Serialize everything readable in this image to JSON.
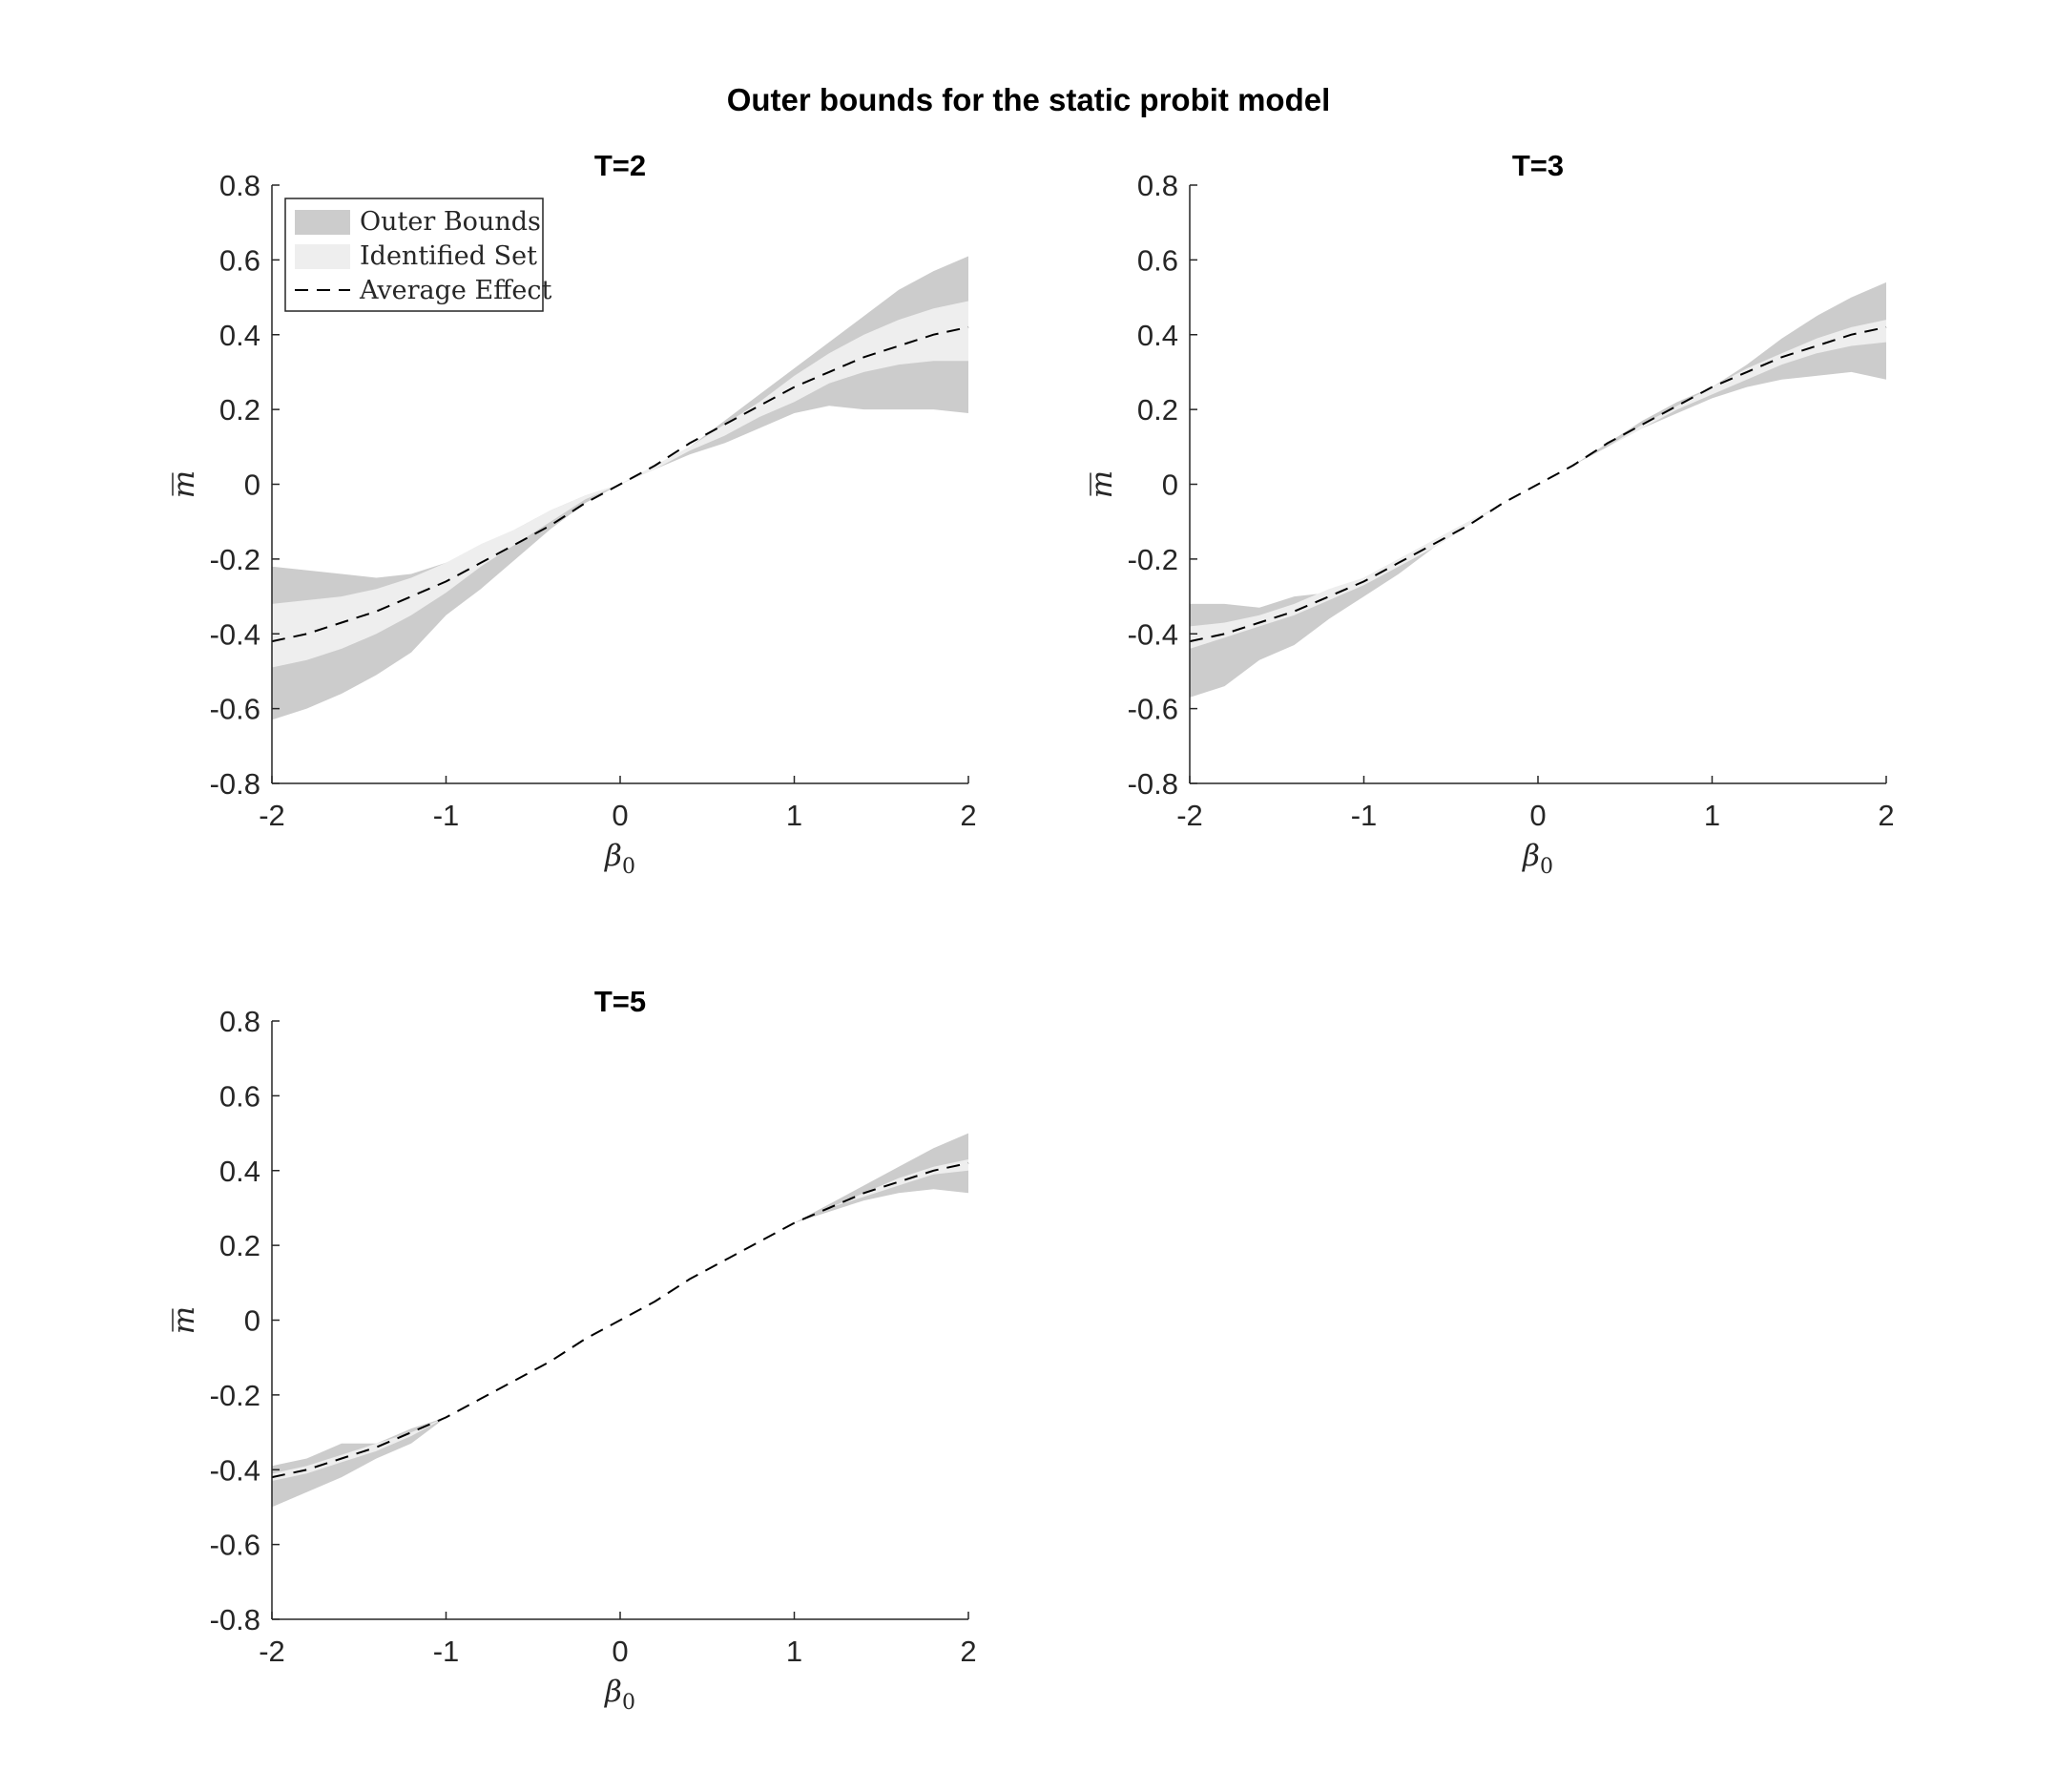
{
  "figure": {
    "title": "Outer bounds for the static probit model",
    "colors": {
      "outer": "#cccccc",
      "identified": "#eeeeee",
      "average": "#000000",
      "axis": "#262626"
    }
  },
  "legend": {
    "placement": "top-left",
    "entries": [
      "Outer Bounds",
      "Identified Set",
      "Average Effect"
    ]
  },
  "chart_data": [
    {
      "type": "area",
      "title": "T=2",
      "xlabel_base": "β",
      "xlabel_sub": "0",
      "ylabel": "m",
      "xlim": [
        -2,
        2
      ],
      "ylim": [
        -0.8,
        0.8
      ],
      "xticks": [
        -2,
        -1,
        0,
        1,
        2
      ],
      "yticks": [
        -0.8,
        -0.6,
        -0.4,
        -0.2,
        0,
        0.2,
        0.4,
        0.6,
        0.8
      ],
      "xtick_labels": [
        "-2",
        "-1",
        "0",
        "1",
        "2"
      ],
      "ytick_labels": [
        "-0.8",
        "-0.6",
        "-0.4",
        "-0.2",
        "0",
        "0.2",
        "0.4",
        "0.6",
        "0.8"
      ],
      "grid": false,
      "has_legend": true,
      "x": [
        -2,
        -1.8,
        -1.6,
        -1.4,
        -1.2,
        -1,
        -0.8,
        -0.6,
        -0.4,
        -0.2,
        0,
        0.2,
        0.4,
        0.6,
        0.8,
        1,
        1.2,
        1.4,
        1.6,
        1.8,
        2
      ],
      "series": [
        {
          "role": "outer_upper",
          "values": [
            -0.22,
            -0.23,
            -0.24,
            -0.25,
            -0.24,
            -0.21,
            -0.17,
            -0.12,
            -0.07,
            -0.03,
            0.0,
            0.05,
            0.1,
            0.17,
            0.24,
            0.31,
            0.38,
            0.45,
            0.52,
            0.57,
            0.61
          ]
        },
        {
          "role": "outer_lower",
          "values": [
            -0.63,
            -0.6,
            -0.56,
            -0.51,
            -0.45,
            -0.35,
            -0.28,
            -0.2,
            -0.12,
            -0.05,
            0.0,
            0.04,
            0.08,
            0.11,
            0.15,
            0.19,
            0.21,
            0.2,
            0.2,
            0.2,
            0.19
          ]
        },
        {
          "role": "identified_upper",
          "values": [
            -0.32,
            -0.31,
            -0.3,
            -0.28,
            -0.25,
            -0.21,
            -0.16,
            -0.12,
            -0.07,
            -0.03,
            0.0,
            0.05,
            0.1,
            0.16,
            0.22,
            0.29,
            0.35,
            0.4,
            0.44,
            0.47,
            0.49
          ]
        },
        {
          "role": "identified_lower",
          "values": [
            -0.49,
            -0.47,
            -0.44,
            -0.4,
            -0.35,
            -0.29,
            -0.22,
            -0.16,
            -0.1,
            -0.04,
            0.0,
            0.04,
            0.09,
            0.13,
            0.18,
            0.22,
            0.27,
            0.3,
            0.32,
            0.33,
            0.33
          ]
        },
        {
          "role": "average",
          "values": [
            -0.42,
            -0.4,
            -0.37,
            -0.34,
            -0.3,
            -0.26,
            -0.21,
            -0.16,
            -0.11,
            -0.05,
            0.0,
            0.05,
            0.11,
            0.16,
            0.21,
            0.26,
            0.3,
            0.34,
            0.37,
            0.4,
            0.42
          ]
        }
      ]
    },
    {
      "type": "area",
      "title": "T=3",
      "xlabel_base": "β",
      "xlabel_sub": "0",
      "ylabel": "m",
      "xlim": [
        -2,
        2
      ],
      "ylim": [
        -0.8,
        0.8
      ],
      "xticks": [
        -2,
        -1,
        0,
        1,
        2
      ],
      "yticks": [
        -0.8,
        -0.6,
        -0.4,
        -0.2,
        0,
        0.2,
        0.4,
        0.6,
        0.8
      ],
      "xtick_labels": [
        "-2",
        "-1",
        "0",
        "1",
        "2"
      ],
      "ytick_labels": [
        "-0.8",
        "-0.6",
        "-0.4",
        "-0.2",
        "0",
        "0.2",
        "0.4",
        "0.6",
        "0.8"
      ],
      "grid": false,
      "has_legend": false,
      "x": [
        -2,
        -1.8,
        -1.6,
        -1.4,
        -1.2,
        -1,
        -0.8,
        -0.6,
        -0.4,
        -0.2,
        0,
        0.2,
        0.4,
        0.6,
        0.8,
        1,
        1.2,
        1.4,
        1.6,
        1.8,
        2
      ],
      "series": [
        {
          "role": "outer_upper",
          "values": [
            -0.32,
            -0.32,
            -0.33,
            -0.3,
            -0.29,
            -0.25,
            -0.2,
            -0.15,
            -0.1,
            -0.05,
            0.0,
            0.05,
            0.11,
            0.17,
            0.22,
            0.26,
            0.32,
            0.39,
            0.45,
            0.5,
            0.54
          ]
        },
        {
          "role": "outer_lower",
          "values": [
            -0.57,
            -0.54,
            -0.47,
            -0.43,
            -0.36,
            -0.3,
            -0.24,
            -0.17,
            -0.11,
            -0.05,
            0.0,
            0.05,
            0.1,
            0.15,
            0.19,
            0.23,
            0.26,
            0.28,
            0.29,
            0.3,
            0.28
          ]
        },
        {
          "role": "identified_upper",
          "values": [
            -0.38,
            -0.37,
            -0.35,
            -0.32,
            -0.28,
            -0.25,
            -0.2,
            -0.15,
            -0.1,
            -0.05,
            0.0,
            0.05,
            0.1,
            0.16,
            0.21,
            0.26,
            0.31,
            0.35,
            0.39,
            0.42,
            0.44
          ]
        },
        {
          "role": "identified_lower",
          "values": [
            -0.44,
            -0.41,
            -0.38,
            -0.35,
            -0.31,
            -0.27,
            -0.22,
            -0.17,
            -0.11,
            -0.05,
            0.0,
            0.05,
            0.1,
            0.15,
            0.2,
            0.24,
            0.28,
            0.32,
            0.35,
            0.37,
            0.38
          ]
        },
        {
          "role": "average",
          "values": [
            -0.42,
            -0.4,
            -0.37,
            -0.34,
            -0.3,
            -0.26,
            -0.21,
            -0.16,
            -0.11,
            -0.05,
            0.0,
            0.05,
            0.11,
            0.16,
            0.21,
            0.26,
            0.3,
            0.34,
            0.37,
            0.4,
            0.42
          ]
        }
      ]
    },
    {
      "type": "area",
      "title": "T=5",
      "xlabel_base": "β",
      "xlabel_sub": "0",
      "ylabel": "m",
      "xlim": [
        -2,
        2
      ],
      "ylim": [
        -0.8,
        0.8
      ],
      "xticks": [
        -2,
        -1,
        0,
        1,
        2
      ],
      "yticks": [
        -0.8,
        -0.6,
        -0.4,
        -0.2,
        0,
        0.2,
        0.4,
        0.6,
        0.8
      ],
      "xtick_labels": [
        "-2",
        "-1",
        "0",
        "1",
        "2"
      ],
      "ytick_labels": [
        "-0.8",
        "-0.6",
        "-0.4",
        "-0.2",
        "0",
        "0.2",
        "0.4",
        "0.6",
        "0.8"
      ],
      "grid": false,
      "has_legend": false,
      "x": [
        -2,
        -1.8,
        -1.6,
        -1.4,
        -1.2,
        -1,
        -0.8,
        -0.6,
        -0.4,
        -0.2,
        0,
        0.2,
        0.4,
        0.6,
        0.8,
        1,
        1.2,
        1.4,
        1.6,
        1.8,
        2
      ],
      "series": [
        {
          "role": "outer_upper",
          "values": [
            -0.39,
            -0.37,
            -0.33,
            -0.33,
            -0.29,
            -0.26,
            -0.21,
            -0.16,
            -0.11,
            -0.05,
            0.0,
            0.05,
            0.11,
            0.16,
            0.21,
            0.26,
            0.31,
            0.36,
            0.41,
            0.46,
            0.5
          ]
        },
        {
          "role": "outer_lower",
          "values": [
            -0.5,
            -0.46,
            -0.42,
            -0.37,
            -0.33,
            -0.26,
            -0.21,
            -0.16,
            -0.11,
            -0.05,
            0.0,
            0.05,
            0.11,
            0.16,
            0.21,
            0.26,
            0.29,
            0.32,
            0.34,
            0.35,
            0.34
          ]
        },
        {
          "role": "identified_upper",
          "values": [
            -0.41,
            -0.39,
            -0.36,
            -0.33,
            -0.3,
            -0.26,
            -0.21,
            -0.16,
            -0.11,
            -0.05,
            0.0,
            0.05,
            0.11,
            0.16,
            0.21,
            0.26,
            0.3,
            0.34,
            0.38,
            0.41,
            0.43
          ]
        },
        {
          "role": "identified_lower",
          "values": [
            -0.43,
            -0.41,
            -0.38,
            -0.35,
            -0.31,
            -0.26,
            -0.21,
            -0.16,
            -0.11,
            -0.05,
            0.0,
            0.05,
            0.11,
            0.16,
            0.21,
            0.26,
            0.3,
            0.33,
            0.36,
            0.39,
            0.4
          ]
        },
        {
          "role": "average",
          "values": [
            -0.42,
            -0.4,
            -0.37,
            -0.34,
            -0.3,
            -0.26,
            -0.21,
            -0.16,
            -0.11,
            -0.05,
            0.0,
            0.05,
            0.11,
            0.16,
            0.21,
            0.26,
            0.3,
            0.34,
            0.37,
            0.4,
            0.42
          ]
        }
      ]
    }
  ]
}
